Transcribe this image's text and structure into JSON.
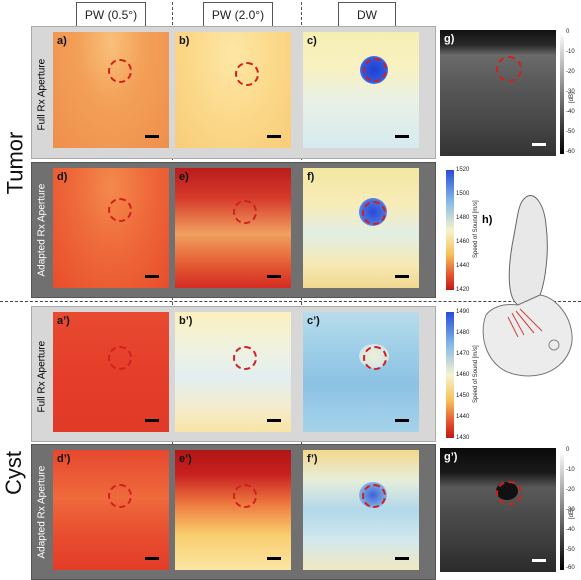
{
  "columns": [
    "PW (0.5°)",
    "PW (2.0°)",
    "DW"
  ],
  "groups": {
    "tumor": "Tumor",
    "cyst": "Cyst"
  },
  "rows": {
    "full": "Full Rx Aperture",
    "adapted": "Adapted Rx Aperture"
  },
  "panels": {
    "a": "a)",
    "b": "b)",
    "c": "c)",
    "d": "d)",
    "e": "e)",
    "f": "f)",
    "a2": "a’)",
    "b2": "b’)",
    "c2": "c’)",
    "d2": "d’)",
    "e2": "e’)",
    "f2": "f’)",
    "g": "g)",
    "g2": "g’)",
    "h": "h)"
  },
  "colorbar_top": {
    "title": "Speed of Sound [m/s]",
    "ticks": [
      "1520",
      "1500",
      "1480",
      "1460",
      "1440",
      "1420"
    ]
  },
  "colorbar_bottom": {
    "title": "Speed of Sound [m/s]",
    "ticks": [
      "1490",
      "1480",
      "1470",
      "1460",
      "1450",
      "1440",
      "1430"
    ]
  },
  "db_scale": {
    "title": "[dB]",
    "ticks": [
      "0",
      "-10",
      "-20",
      "-30",
      "-40",
      "-50",
      "-60"
    ]
  },
  "colors": {
    "warm": "#f4a259",
    "red": "#e5432a",
    "yellow": "#fbe39a",
    "blue": "#2a4fd8",
    "lightblue": "#a9d3ea"
  }
}
